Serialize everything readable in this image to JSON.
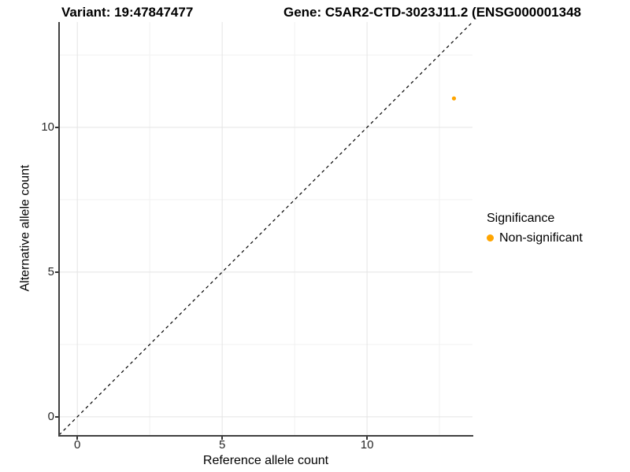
{
  "titles": {
    "variant": "Variant: 19:47847477",
    "gene": "Gene: C5AR2-CTD-3023J11.2 (ENSG000001348"
  },
  "chart_data": {
    "type": "scatter",
    "title_left": "Variant: 19:47847477",
    "title_right": "Gene: C5AR2-CTD-3023J11.2 (ENSG000001348",
    "xlabel": "Reference allele count",
    "ylabel": "Alternative allele count",
    "xlim": [
      -0.63,
      13.64
    ],
    "ylim": [
      -0.63,
      13.64
    ],
    "x_major_ticks": [
      0,
      5,
      10
    ],
    "y_major_ticks": [
      0,
      5,
      10
    ],
    "x_minor_ticks": [
      2.5,
      7.5,
      12.5
    ],
    "y_minor_ticks": [
      2.5,
      7.5,
      12.5
    ],
    "grid": true,
    "identity_line": {
      "slope": 1,
      "intercept": 0,
      "style": "dashed",
      "color": "#000000"
    },
    "points": [
      {
        "x": 13,
        "y": 11,
        "series": "Non-significant"
      }
    ],
    "legend": {
      "title": "Significance",
      "position": "right",
      "entries": [
        {
          "label": "Non-significant",
          "color": "#FFA500"
        }
      ]
    },
    "colors": {
      "point": "#FFA500",
      "grid_major": "#E4E4E4",
      "grid_minor": "#F1F1F1",
      "axis_line": "#404040",
      "tick": "#333333",
      "tick_label": "#262626"
    }
  }
}
